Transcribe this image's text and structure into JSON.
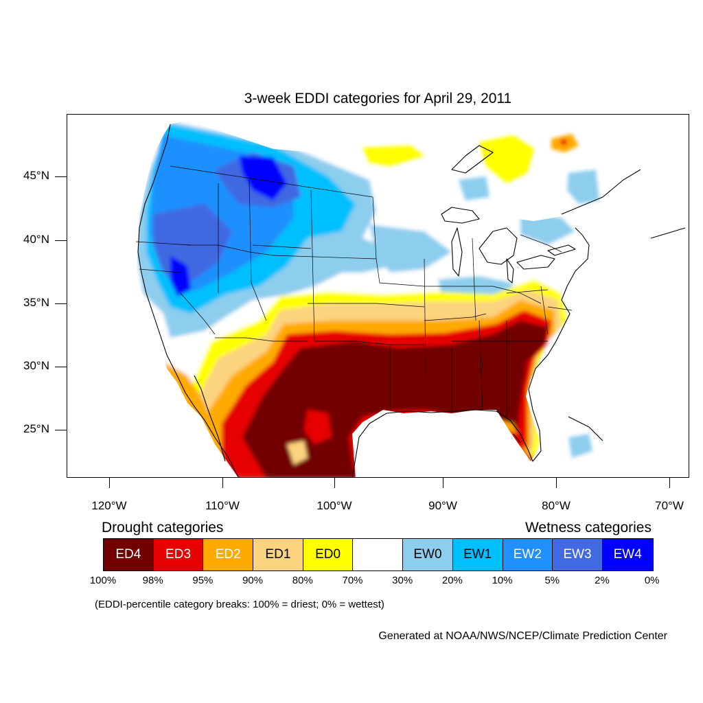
{
  "title": "3-week EDDI categories for April 29, 2011",
  "lat_labels": [
    "45°N",
    "40°N",
    "35°N",
    "30°N",
    "25°N"
  ],
  "lon_labels": [
    "120°W",
    "110°W",
    "100°W",
    "90°W",
    "80°W",
    "70°W"
  ],
  "legend": {
    "drought_heading": "Drought categories",
    "wetness_heading": "Wetness categories",
    "categories": [
      {
        "label": "ED4",
        "color": "#730000",
        "text_color": "#ffffff"
      },
      {
        "label": "ED3",
        "color": "#e60000",
        "text_color": "#ffffff"
      },
      {
        "label": "ED2",
        "color": "#ffaa00",
        "text_color": "#ffffff"
      },
      {
        "label": "ED1",
        "color": "#fcd37f",
        "text_color": "#000000"
      },
      {
        "label": "ED0",
        "color": "#ffff00",
        "text_color": "#000000"
      },
      {
        "label": "",
        "color": "#ffffff",
        "text_color": "#000000"
      },
      {
        "label": "EW0",
        "color": "#8dcdee",
        "text_color": "#000000"
      },
      {
        "label": "EW1",
        "color": "#00bfff",
        "text_color": "#000000"
      },
      {
        "label": "EW2",
        "color": "#1e90ff",
        "text_color": "#ffffff"
      },
      {
        "label": "EW3",
        "color": "#4169e1",
        "text_color": "#ffffff"
      },
      {
        "label": "EW4",
        "color": "#0000ff",
        "text_color": "#ffffff"
      }
    ],
    "breaks": [
      "100%",
      "98%",
      "95%",
      "90%",
      "80%",
      "70%",
      "30%",
      "20%",
      "10%",
      "5%",
      "2%",
      "0%"
    ],
    "breaks_note": "(EDDI-percentile category breaks: 100% = driest; 0% = wettest)"
  },
  "credit": "Generated at NOAA/NWS/NCEP/Climate Prediction Center"
}
